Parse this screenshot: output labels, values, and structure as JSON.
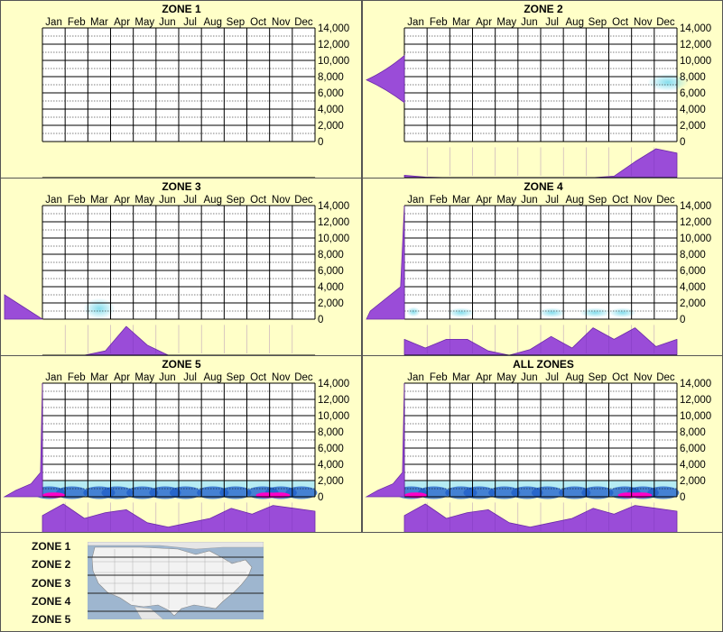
{
  "months": [
    "Jan",
    "Feb",
    "Mar",
    "Apr",
    "May",
    "Jun",
    "Jul",
    "Aug",
    "Sep",
    "Oct",
    "Nov",
    "Dec"
  ],
  "y_ticks": [
    "14,000",
    "12,000",
    "10,000",
    "8,000",
    "6,000",
    "4,000",
    "2,000",
    "0"
  ],
  "colors": {
    "background": "#ffffcc",
    "profile": "#9a4cd8",
    "profile_stroke": "#6b2aa8",
    "heat_low": "#7fdcec",
    "heat_mid": "#1e5ec8",
    "heat_high": "#ff00c8"
  },
  "chart_data": [
    {
      "type": "heatmap",
      "title": "ZONE 1",
      "ylim": [
        0,
        14000
      ],
      "hotspots": [],
      "month_profile": [
        0,
        0,
        0,
        0,
        0,
        0,
        0,
        0,
        0,
        0,
        0,
        0
      ],
      "elev_profile": []
    },
    {
      "type": "heatmap",
      "title": "ZONE 2",
      "ylim": [
        0,
        14000
      ],
      "hotspots": [
        {
          "month": 11.6,
          "elev": 7300,
          "w": 0.9,
          "h": 1100,
          "level": 0.55
        }
      ],
      "month_profile": [
        0.08,
        0.02,
        0,
        0,
        0,
        0,
        0,
        0,
        0,
        0,
        0.05,
        0.55,
        1.0,
        0.85
      ],
      "elev_profile": [
        {
          "elev": 4800,
          "width": 0
        },
        {
          "elev": 7600,
          "width": 1.0
        },
        {
          "elev": 10600,
          "width": 0
        }
      ]
    },
    {
      "type": "heatmap",
      "title": "ZONE 3",
      "ylim": [
        0,
        14000
      ],
      "hotspots": [
        {
          "month": 2.5,
          "elev": 1300,
          "w": 0.7,
          "h": 1300,
          "level": 0.5
        }
      ],
      "month_profile": [
        0,
        0,
        0,
        0.15,
        1.0,
        0.35,
        0,
        0,
        0,
        0,
        0,
        0,
        0,
        0
      ],
      "elev_profile": [
        {
          "elev": 0,
          "width": 1.0
        },
        {
          "elev": 3000,
          "width": 1.0
        },
        {
          "elev": 0,
          "width": 0
        }
      ]
    },
    {
      "type": "heatmap",
      "title": "ZONE 4",
      "ylim": [
        0,
        14000
      ],
      "hotspots": [
        {
          "month": 0.4,
          "elev": 900,
          "w": 0.3,
          "h": 600,
          "level": 0.3
        },
        {
          "month": 2.5,
          "elev": 800,
          "w": 0.6,
          "h": 600,
          "level": 0.35
        },
        {
          "month": 6.5,
          "elev": 800,
          "w": 0.6,
          "h": 600,
          "level": 0.35
        },
        {
          "month": 8.4,
          "elev": 800,
          "w": 0.7,
          "h": 600,
          "level": 0.35
        },
        {
          "month": 9.6,
          "elev": 800,
          "w": 0.6,
          "h": 600,
          "level": 0.35
        }
      ],
      "month_profile": [
        0.55,
        0.25,
        0.55,
        0.55,
        0.15,
        0,
        0.2,
        0.65,
        0.25,
        0.95,
        0.55,
        0.95,
        0.3,
        0.55
      ],
      "elev_profile": [
        {
          "elev": 0,
          "width": 1.0
        },
        {
          "elev": 1000,
          "width": 0.9
        },
        {
          "elev": 4000,
          "width": 0.1
        },
        {
          "elev": 14000,
          "width": 0
        }
      ]
    },
    {
      "type": "heatmap",
      "title": "ZONE 5",
      "ylim": [
        0,
        14000
      ],
      "hotspots": "dense_low",
      "month_profile": [
        0.6,
        1.0,
        0.5,
        0.7,
        0.8,
        0.35,
        0.2,
        0.35,
        0.5,
        0.85,
        0.65,
        0.95,
        0.85,
        0.75
      ],
      "elev_profile": [
        {
          "elev": 0,
          "width": 1.0
        },
        {
          "elev": 800,
          "width": 0.7
        },
        {
          "elev": 1600,
          "width": 0.3
        },
        {
          "elev": 3000,
          "width": 0.05
        },
        {
          "elev": 14000,
          "width": 0
        }
      ]
    },
    {
      "type": "heatmap",
      "title": "ALL ZONES",
      "ylim": [
        0,
        14000
      ],
      "hotspots": "dense_low",
      "month_profile": [
        0.6,
        1.0,
        0.5,
        0.7,
        0.8,
        0.35,
        0.2,
        0.35,
        0.5,
        0.85,
        0.65,
        0.95,
        0.85,
        0.75
      ],
      "elev_profile": [
        {
          "elev": 0,
          "width": 1.0
        },
        {
          "elev": 800,
          "width": 0.7
        },
        {
          "elev": 1600,
          "width": 0.3
        },
        {
          "elev": 3000,
          "width": 0.05
        },
        {
          "elev": 14000,
          "width": 0
        }
      ]
    }
  ],
  "legend": {
    "zones": [
      "ZONE 1",
      "ZONE 2",
      "ZONE 3",
      "ZONE 4",
      "ZONE 5"
    ]
  }
}
